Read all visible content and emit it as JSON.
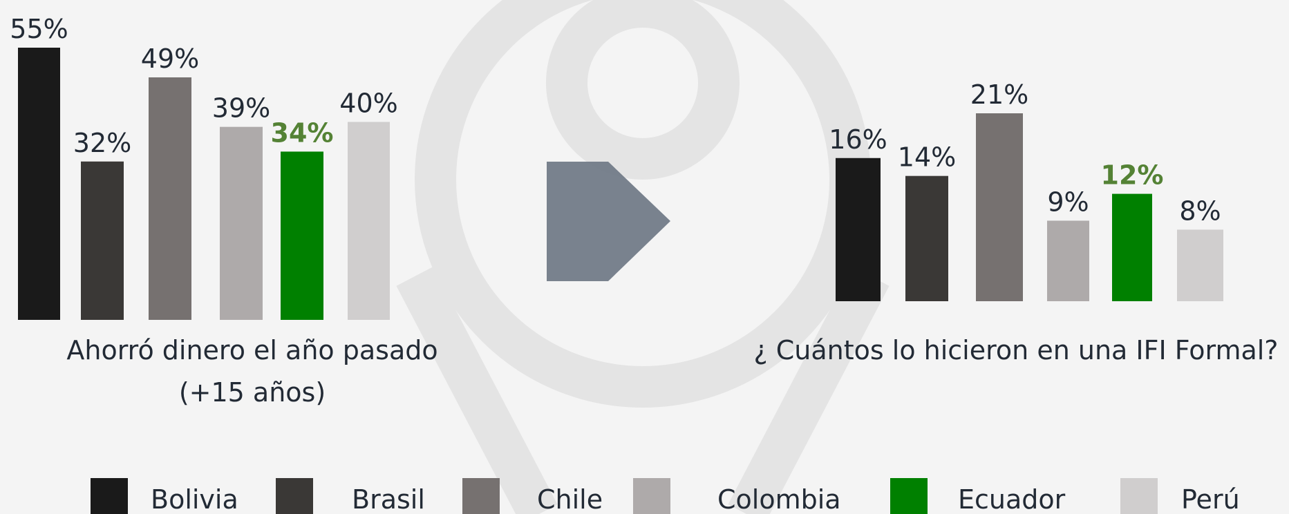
{
  "chart_data": [
    {
      "type": "bar",
      "title": "Ahorró dinero el año pasado",
      "subtitle": "(+15 años)",
      "categories": [
        "Bolivia",
        "Brasil",
        "Chile",
        "Colombia",
        "Ecuador",
        "Perú"
      ],
      "colors": [
        "#1a1a1a",
        "#3a3836",
        "#767170",
        "#aeaaaa",
        "#008000",
        "#d0cece"
      ],
      "values": [
        55,
        32,
        49,
        39,
        34,
        40
      ],
      "value_labels": [
        "55%",
        "32%",
        "49%",
        "39%",
        "34%",
        "40%"
      ],
      "highlight": "Ecuador",
      "highlight_color": "#548235"
    },
    {
      "type": "bar",
      "title": "¿ Cuántos lo hicieron en una IFI Formal?",
      "categories": [
        "Bolivia",
        "Brasil",
        "Chile",
        "Colombia",
        "Ecuador",
        "Perú"
      ],
      "colors": [
        "#1a1a1a",
        "#3a3836",
        "#767170",
        "#aeaaaa",
        "#008000",
        "#d0cece"
      ],
      "values": [
        16,
        14,
        21,
        9,
        12,
        8
      ],
      "value_labels": [
        "16%",
        "14%",
        "21%",
        "9%",
        "12%",
        "8%"
      ],
      "highlight": "Ecuador",
      "highlight_color": "#548235"
    }
  ]
}
